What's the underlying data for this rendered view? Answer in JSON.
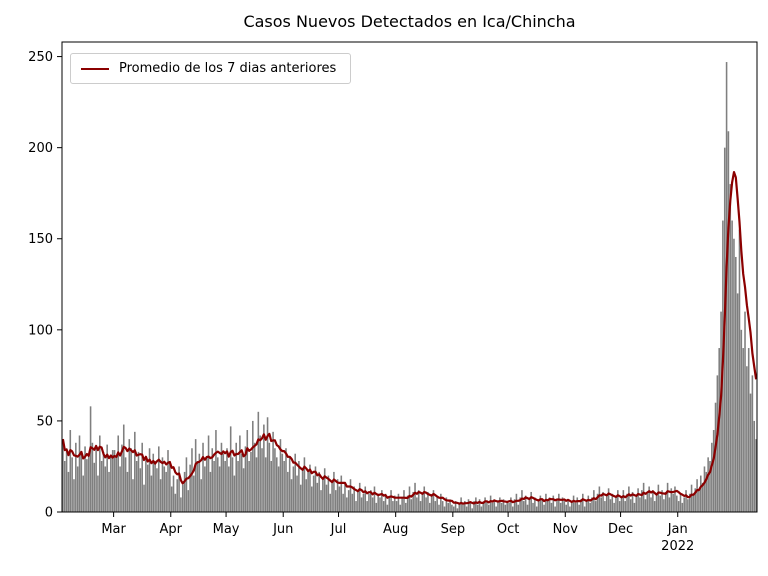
{
  "chart_data": {
    "type": "bar",
    "title": "Casos Nuevos Detectados en Ica/Chincha",
    "xlabel": "",
    "ylabel": "",
    "ylim": [
      0,
      258
    ],
    "yticks": [
      0,
      50,
      100,
      150,
      200,
      250
    ],
    "grid": false,
    "legend_position": "upper left",
    "legend": [
      {
        "label": "Promedio de los 7 dias anteriores",
        "color": "#8b0000"
      }
    ],
    "bar_color": "#7f7f7f",
    "line_color": "#8b0000",
    "rolling_window": 7,
    "xticks": [
      {
        "label": "Mar",
        "index": 28
      },
      {
        "label": "Apr",
        "index": 59
      },
      {
        "label": "May",
        "index": 89
      },
      {
        "label": "Jun",
        "index": 120
      },
      {
        "label": "Jul",
        "index": 150
      },
      {
        "label": "Aug",
        "index": 181
      },
      {
        "label": "Sep",
        "index": 212
      },
      {
        "label": "Oct",
        "index": 242
      },
      {
        "label": "Nov",
        "index": 273
      },
      {
        "label": "Dec",
        "index": 303
      },
      {
        "label": "Jan",
        "index": 334,
        "sub": "2022"
      }
    ],
    "values": [
      40,
      28,
      35,
      22,
      45,
      30,
      18,
      38,
      25,
      42,
      33,
      20,
      36,
      29,
      31,
      58,
      38,
      27,
      35,
      20,
      42,
      28,
      33,
      25,
      37,
      22,
      30,
      34,
      34,
      30,
      42,
      25,
      37,
      48,
      30,
      22,
      40,
      35,
      18,
      44,
      28,
      33,
      24,
      38,
      15,
      30,
      26,
      35,
      20,
      32,
      28,
      24,
      36,
      18,
      30,
      25,
      22,
      34,
      27,
      14,
      20,
      10,
      18,
      25,
      8,
      15,
      22,
      30,
      12,
      26,
      35,
      20,
      40,
      28,
      32,
      18,
      38,
      25,
      30,
      42,
      22,
      35,
      28,
      45,
      30,
      25,
      38,
      32,
      28,
      35,
      25,
      47,
      30,
      20,
      38,
      28,
      42,
      32,
      24,
      36,
      45,
      28,
      33,
      50,
      38,
      30,
      55,
      42,
      35,
      48,
      30,
      52,
      38,
      28,
      44,
      35,
      30,
      25,
      40,
      32,
      28,
      35,
      22,
      30,
      18,
      25,
      32,
      20,
      28,
      15,
      24,
      30,
      18,
      22,
      26,
      14,
      20,
      25,
      16,
      22,
      12,
      18,
      24,
      15,
      20,
      10,
      16,
      22,
      12,
      18,
      14,
      20,
      10,
      16,
      8,
      12,
      18,
      10,
      14,
      6,
      12,
      16,
      8,
      10,
      14,
      6,
      10,
      12,
      8,
      14,
      5,
      10,
      8,
      12,
      6,
      10,
      4,
      8,
      12,
      6,
      9,
      6,
      10,
      4,
      8,
      12,
      5,
      9,
      14,
      7,
      11,
      16,
      8,
      12,
      6,
      10,
      14,
      8,
      11,
      5,
      9,
      12,
      6,
      8,
      4,
      10,
      6,
      3,
      8,
      5,
      7,
      4,
      3,
      6,
      2,
      5,
      8,
      4,
      6,
      3,
      7,
      5,
      2,
      6,
      8,
      4,
      7,
      3,
      5,
      8,
      6,
      4,
      9,
      5,
      7,
      3,
      6,
      8,
      5,
      7,
      4,
      6,
      5,
      8,
      3,
      7,
      10,
      4,
      8,
      12,
      6,
      9,
      4,
      7,
      11,
      5,
      8,
      3,
      6,
      9,
      7,
      4,
      10,
      6,
      8,
      5,
      9,
      3,
      7,
      10,
      5,
      8,
      6,
      4,
      7,
      3,
      6,
      9,
      5,
      8,
      4,
      7,
      10,
      3,
      6,
      9,
      5,
      8,
      12,
      6,
      10,
      14,
      8,
      11,
      6,
      9,
      13,
      7,
      10,
      5,
      8,
      12,
      6,
      8,
      12,
      6,
      10,
      14,
      7,
      11,
      5,
      9,
      13,
      8,
      12,
      16,
      7,
      10,
      14,
      8,
      12,
      6,
      10,
      15,
      9,
      12,
      7,
      11,
      16,
      8,
      13,
      10,
      14,
      9,
      6,
      10,
      5,
      8,
      12,
      7,
      10,
      15,
      9,
      13,
      18,
      12,
      20,
      16,
      25,
      22,
      30,
      28,
      38,
      45,
      60,
      75,
      90,
      110,
      160,
      200,
      247,
      209,
      180,
      160,
      150,
      140,
      120,
      155,
      100,
      90,
      110,
      80,
      90,
      65,
      75,
      50,
      40
    ]
  }
}
